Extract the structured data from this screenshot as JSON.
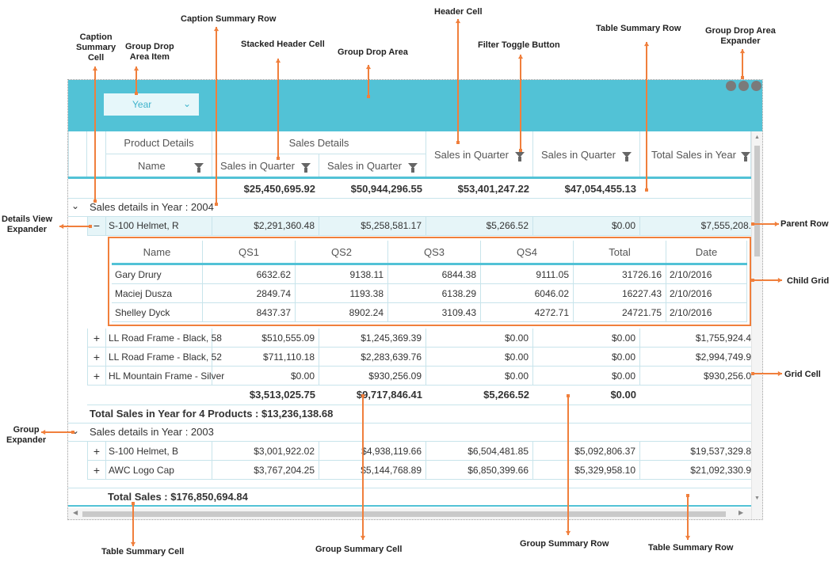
{
  "callouts": {
    "caption_summary_row": "Caption Summary Row",
    "header_cell": "Header Cell",
    "table_summary_row_top": "Table Summary Row",
    "group_drop_area_expander": "Group Drop Area\nExpander",
    "caption_summary_cell": "Caption\nSummary\nCell",
    "group_drop_area_item": "Group Drop\nArea Item",
    "stacked_header_cell": "Stacked Header Cell",
    "group_drop_area": "Group Drop Area",
    "filter_toggle_button": "Filter Toggle Button",
    "details_view_expander": "Details View\nExpander",
    "parent_row": "Parent Row",
    "child_grid": "Child Grid",
    "grid_cell": "Grid Cell",
    "group_expander": "Group\nExpander",
    "table_summary_cell": "Table Summary Cell",
    "group_summary_cell": "Group Summary Cell",
    "group_summary_row": "Group Summary Row",
    "table_summary_row_bottom": "Table Summary Row"
  },
  "group_drop": {
    "item": "Year"
  },
  "headers": {
    "stacked_product": "Product Details",
    "stacked_sales": "Sales Details",
    "name": "Name",
    "q1": "Sales in Quarter",
    "q2": "Sales in Quarter",
    "q3": "Sales in Quarter",
    "q4": "Sales in Quarter",
    "total": "Total Sales in Year"
  },
  "caption_summary": {
    "q1": "$25,450,695.92",
    "q2": "$50,944,296.55",
    "q3": "$53,401,247.22",
    "q4": "$47,054,455.13"
  },
  "group_2004": {
    "caption": "Sales details in Year : 2004",
    "parent_row": {
      "expander": "−",
      "name": "S-100 Helmet, R",
      "q1": "$2,291,360.48",
      "q2": "$5,258,581.17",
      "q3": "$5,266.52",
      "q4": "$0.00",
      "total": "$7,555,208."
    },
    "child": {
      "headers": [
        "Name",
        "QS1",
        "QS2",
        "QS3",
        "QS4",
        "Total",
        "Date"
      ],
      "rows": [
        [
          "Gary Drury",
          "6632.62",
          "9138.11",
          "6844.38",
          "9111.05",
          "31726.16",
          "2/10/2016"
        ],
        [
          "Maciej Dusza",
          "2849.74",
          "1193.38",
          "6138.29",
          "6046.02",
          "16227.43",
          "2/10/2016"
        ],
        [
          "Shelley Dyck",
          "8437.37",
          "8902.24",
          "3109.43",
          "4272.71",
          "24721.75",
          "2/10/2016"
        ]
      ]
    },
    "rows": [
      {
        "expander": "+",
        "name": "LL Road Frame - Black, 58",
        "q1": "$510,555.09",
        "q2": "$1,245,369.39",
        "q3": "$0.00",
        "q4": "$0.00",
        "total": "$1,755,924.4"
      },
      {
        "expander": "+",
        "name": "LL Road Frame - Black, 52",
        "q1": "$711,110.18",
        "q2": "$2,283,639.76",
        "q3": "$0.00",
        "q4": "$0.00",
        "total": "$2,994,749.9"
      },
      {
        "expander": "+",
        "name": "HL Mountain Frame - Silver",
        "q1": "$0.00",
        "q2": "$930,256.09",
        "q3": "$0.00",
        "q4": "$0.00",
        "total": "$930,256.0"
      }
    ],
    "group_summary": {
      "q1": "$3,513,025.75",
      "q2": "$9,717,846.41",
      "q3": "$5,266.52",
      "q4": "$0.00"
    },
    "group_total": "Total Sales in Year for 4 Products : $13,236,138.68"
  },
  "group_2003": {
    "caption": "Sales details in Year : 2003",
    "rows": [
      {
        "expander": "+",
        "name": "S-100 Helmet, B",
        "q1": "$3,001,922.02",
        "q2": "$4,938,119.66",
        "q3": "$6,504,481.85",
        "q4": "$5,092,806.37",
        "total": "$19,537,329.8"
      },
      {
        "expander": "+",
        "name": "AWC Logo Cap",
        "q1": "$3,767,204.25",
        "q2": "$5,144,768.89",
        "q3": "$6,850,399.66",
        "q4": "$5,329,958.10",
        "total": "$21,092,330.9"
      }
    ]
  },
  "table_summary": "Total Sales : $176,850,694.84",
  "colors": {
    "accent": "#52C2D6",
    "orange": "#F07F3C",
    "row_highlight": "#E6F5F8"
  }
}
